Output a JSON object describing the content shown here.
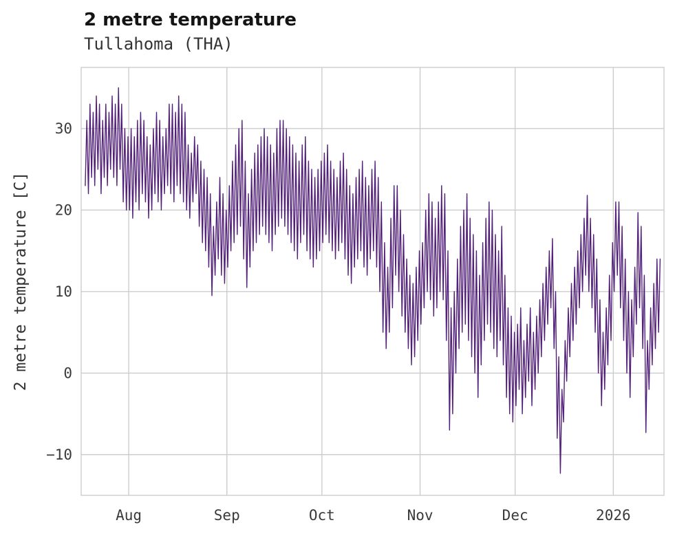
{
  "chart": {
    "title": "2 metre temperature",
    "subtitle": "Tullahoma (THA)",
    "ylabel": "2 metre temperature [C]"
  },
  "chart_data": {
    "type": "line",
    "series_name": "2 metre temperature",
    "title": "2 metre temperature",
    "subtitle": "Tullahoma (THA)",
    "xlabel": "",
    "ylabel": "2 metre temperature [C]",
    "line_color": "#522079",
    "grid_color": "#cccccc",
    "text_color": "#3a3a3a",
    "grid": true,
    "legend": "none",
    "ylim": [
      -15,
      37.5
    ],
    "xlim_days": [
      -1,
      183
    ],
    "y_ticks": [
      {
        "label": "30",
        "value": 30
      },
      {
        "label": "20",
        "value": 20
      },
      {
        "label": "10",
        "value": 10
      },
      {
        "label": "0",
        "value": 0
      },
      {
        "label": "−10",
        "value": -10
      }
    ],
    "x_ticks": [
      {
        "label": "Aug",
        "day": 14
      },
      {
        "label": "Sep",
        "day": 45
      },
      {
        "label": "Oct",
        "day": 75
      },
      {
        "label": "Nov",
        "day": 106
      },
      {
        "label": "Dec",
        "day": 136
      },
      {
        "label": "2026",
        "day": 167
      }
    ],
    "points_per_day": 2,
    "daily_min_max": [
      [
        23,
        31
      ],
      [
        22,
        33
      ],
      [
        24,
        32
      ],
      [
        23,
        34
      ],
      [
        25,
        33
      ],
      [
        22,
        31
      ],
      [
        24,
        33
      ],
      [
        23,
        32
      ],
      [
        25,
        34
      ],
      [
        24,
        33
      ],
      [
        23,
        35
      ],
      [
        25,
        33
      ],
      [
        21,
        30
      ],
      [
        20,
        29
      ],
      [
        20,
        30
      ],
      [
        19,
        29
      ],
      [
        21,
        31
      ],
      [
        20,
        32
      ],
      [
        22,
        31
      ],
      [
        21,
        29
      ],
      [
        19,
        28
      ],
      [
        20,
        30
      ],
      [
        22,
        32
      ],
      [
        21,
        31
      ],
      [
        20,
        29
      ],
      [
        22,
        30
      ],
      [
        23,
        33
      ],
      [
        22,
        33
      ],
      [
        21,
        32
      ],
      [
        23,
        34
      ],
      [
        22,
        33
      ],
      [
        21,
        32
      ],
      [
        20,
        28
      ],
      [
        19,
        27
      ],
      [
        21,
        29
      ],
      [
        22,
        28
      ],
      [
        18,
        26
      ],
      [
        16,
        25
      ],
      [
        15,
        24
      ],
      [
        13,
        22
      ],
      [
        9.5,
        18
      ],
      [
        12,
        21
      ],
      [
        14,
        24
      ],
      [
        12,
        22
      ],
      [
        11,
        20
      ],
      [
        13,
        23
      ],
      [
        15,
        26
      ],
      [
        16,
        28
      ],
      [
        17,
        30
      ],
      [
        18,
        31
      ],
      [
        14,
        26
      ],
      [
        10.5,
        22
      ],
      [
        13,
        25
      ],
      [
        15,
        27
      ],
      [
        16,
        28
      ],
      [
        17,
        29
      ],
      [
        18,
        30
      ],
      [
        17,
        29
      ],
      [
        16,
        28
      ],
      [
        15,
        27
      ],
      [
        17,
        30
      ],
      [
        18,
        31
      ],
      [
        19,
        31
      ],
      [
        18,
        30
      ],
      [
        17,
        29
      ],
      [
        16,
        28
      ],
      [
        15,
        27
      ],
      [
        14,
        26
      ],
      [
        16,
        28
      ],
      [
        17,
        29
      ],
      [
        15,
        26
      ],
      [
        14,
        25
      ],
      [
        13,
        24
      ],
      [
        14,
        25
      ],
      [
        15,
        26
      ],
      [
        16,
        27
      ],
      [
        17,
        28
      ],
      [
        16,
        26
      ],
      [
        15,
        25
      ],
      [
        14,
        24
      ],
      [
        15,
        26
      ],
      [
        16,
        27
      ],
      [
        14,
        25
      ],
      [
        12,
        23
      ],
      [
        11,
        22
      ],
      [
        13,
        24
      ],
      [
        14,
        25
      ],
      [
        15,
        26
      ],
      [
        13,
        24
      ],
      [
        12,
        23
      ],
      [
        14,
        25
      ],
      [
        15,
        26
      ],
      [
        13,
        24
      ],
      [
        10,
        21
      ],
      [
        5,
        16
      ],
      [
        3,
        13
      ],
      [
        5,
        19
      ],
      [
        8,
        23
      ],
      [
        12,
        23
      ],
      [
        10,
        20
      ],
      [
        7,
        17
      ],
      [
        5,
        14
      ],
      [
        3,
        12
      ],
      [
        1,
        11
      ],
      [
        2,
        13
      ],
      [
        4,
        15
      ],
      [
        6,
        16
      ],
      [
        8,
        20
      ],
      [
        10,
        22
      ],
      [
        9,
        21
      ],
      [
        7,
        19
      ],
      [
        8,
        21
      ],
      [
        10,
        23
      ],
      [
        9,
        22
      ],
      [
        4,
        15
      ],
      [
        -7,
        8
      ],
      [
        -5,
        10
      ],
      [
        0,
        14
      ],
      [
        3,
        18
      ],
      [
        5,
        20
      ],
      [
        6,
        22
      ],
      [
        4,
        19
      ],
      [
        2,
        17
      ],
      [
        0,
        15
      ],
      [
        -3,
        12
      ],
      [
        1,
        16
      ],
      [
        4,
        19
      ],
      [
        6,
        21
      ],
      [
        5,
        20
      ],
      [
        3,
        17
      ],
      [
        2,
        15
      ],
      [
        4,
        18
      ],
      [
        1,
        12
      ],
      [
        -3,
        8
      ],
      [
        -5,
        7
      ],
      [
        -6,
        5
      ],
      [
        -4,
        6
      ],
      [
        -2,
        8
      ],
      [
        -5,
        4
      ],
      [
        -3,
        6
      ],
      [
        -1,
        8
      ],
      [
        -4,
        5
      ],
      [
        -2,
        7
      ],
      [
        0,
        9
      ],
      [
        2,
        11
      ],
      [
        4,
        13
      ],
      [
        6,
        15
      ],
      [
        8,
        16.5
      ],
      [
        3,
        10
      ],
      [
        -8,
        2
      ],
      [
        -12.3,
        -2
      ],
      [
        -6,
        4
      ],
      [
        -1,
        8
      ],
      [
        2,
        11
      ],
      [
        4,
        13
      ],
      [
        6,
        15
      ],
      [
        8,
        17
      ],
      [
        10,
        19
      ],
      [
        12,
        21.8
      ],
      [
        10,
        19
      ],
      [
        8,
        17
      ],
      [
        5,
        14
      ],
      [
        0,
        9
      ],
      [
        -4,
        5
      ],
      [
        -2,
        8
      ],
      [
        1,
        12
      ],
      [
        4,
        16
      ],
      [
        10,
        21
      ],
      [
        12,
        21
      ],
      [
        8,
        18
      ],
      [
        4,
        14
      ],
      [
        0,
        10
      ],
      [
        -3,
        9
      ],
      [
        2,
        13
      ],
      [
        6,
        19.7
      ],
      [
        8,
        18
      ],
      [
        3,
        12
      ],
      [
        -7.3,
        4
      ],
      [
        -2,
        8
      ],
      [
        1,
        11
      ],
      [
        3,
        14
      ],
      [
        5,
        14
      ]
    ]
  }
}
